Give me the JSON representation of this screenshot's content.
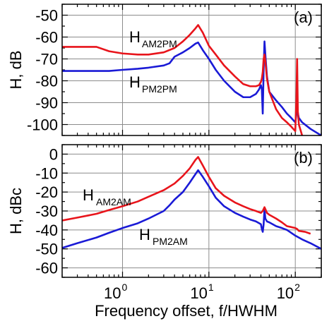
{
  "chart_data": [
    {
      "type": "line",
      "panel_label": "(a)",
      "ylabel": "H, dB",
      "xscale": "log",
      "xlim": [
        0.2,
        200
      ],
      "ylim": [
        -105,
        -45
      ],
      "yticks": [
        -50,
        -60,
        -70,
        -80,
        -90,
        -100
      ],
      "ytick_labels": [
        "-50",
        "-60",
        "-70",
        "-80",
        "-90",
        "-100"
      ],
      "grid": true,
      "series": [
        {
          "name": "HAM2PM",
          "label_main": "H",
          "label_sub": "AM2PM",
          "color": "#e8141b",
          "x": [
            0.2,
            0.3,
            0.5,
            0.7,
            1.0,
            1.5,
            2.0,
            3.0,
            4.0,
            5.0,
            6.0,
            7.0,
            7.5,
            8.5,
            10,
            12,
            15,
            20,
            25,
            30,
            35,
            38,
            40,
            41,
            42,
            43,
            44,
            45,
            47,
            50,
            60,
            70,
            80,
            90,
            100,
            103,
            105,
            107,
            110,
            120,
            130
          ],
          "y": [
            -64.5,
            -64.5,
            -64.5,
            -66.5,
            -67.5,
            -68,
            -68,
            -67,
            -65,
            -62,
            -59,
            -56,
            -54.5,
            -58,
            -64,
            -68,
            -73,
            -78,
            -81.5,
            -82.5,
            -82.5,
            -82,
            -80.5,
            -79,
            -76,
            -70,
            -68,
            -71,
            -79,
            -85,
            -93,
            -97,
            -99,
            -101,
            -103,
            -88,
            -70,
            -94,
            -100,
            -105,
            -106
          ]
        },
        {
          "name": "HPM2PM",
          "label_main": "H",
          "label_sub": "PM2PM",
          "color": "#1a1ad6",
          "x": [
            0.2,
            0.3,
            0.5,
            0.7,
            1.0,
            1.5,
            2.0,
            3.0,
            3.5,
            4.0,
            5.0,
            6.0,
            7.0,
            7.5,
            8.5,
            10,
            12,
            15,
            20,
            25,
            30,
            35,
            38,
            40,
            41,
            42,
            43,
            44,
            45,
            47,
            50,
            60,
            70,
            80,
            90,
            100,
            105,
            110,
            120,
            150,
            200
          ],
          "y": [
            -75.5,
            -75.5,
            -75.5,
            -75.5,
            -75,
            -74.5,
            -74,
            -73,
            -72,
            -69,
            -67,
            -65,
            -63,
            -62.5,
            -66,
            -70,
            -75,
            -80,
            -85,
            -87.5,
            -87.5,
            -86,
            -84,
            -82,
            -84,
            -95,
            -75,
            -62,
            -68,
            -78,
            -85,
            -89,
            -92,
            -95,
            -97,
            -99,
            -93,
            -97,
            -99,
            -102,
            -105
          ]
        }
      ]
    },
    {
      "type": "line",
      "panel_label": "(b)",
      "ylabel": "H, dBc",
      "xlabel": "Frequency offset, f/HWHM",
      "xscale": "log",
      "xlim": [
        0.2,
        200
      ],
      "ylim": [
        -65,
        5
      ],
      "xticks": [
        1,
        10,
        100
      ],
      "xtick_labels": [
        {
          "base": "10",
          "exp": "0"
        },
        {
          "base": "10",
          "exp": "1"
        },
        {
          "base": "10",
          "exp": "2"
        }
      ],
      "yticks": [
        0,
        -10,
        -20,
        -30,
        -40,
        -50,
        -60
      ],
      "ytick_labels": [
        "0",
        "-10",
        "-20",
        "-30",
        "-40",
        "-50",
        "-60"
      ],
      "grid": true,
      "series": [
        {
          "name": "HAM2AM",
          "label_main": "H",
          "label_sub": "AM2AM",
          "color": "#e8141b",
          "x": [
            0.2,
            0.3,
            0.5,
            0.7,
            1.0,
            1.5,
            2.0,
            3.0,
            4.0,
            5.0,
            6.0,
            7.0,
            7.5,
            8.5,
            10,
            12,
            15,
            20,
            25,
            30,
            35,
            40,
            42,
            43,
            44,
            45,
            47,
            50,
            60,
            70,
            80,
            90,
            100,
            105,
            110,
            130,
            150
          ],
          "y": [
            -35,
            -33.5,
            -31.5,
            -29.5,
            -27.5,
            -25,
            -22.5,
            -19,
            -15.5,
            -11.5,
            -7.5,
            -3,
            -1.5,
            -6,
            -12,
            -18,
            -22,
            -25.5,
            -27.5,
            -29,
            -30,
            -31,
            -30,
            -29,
            -28,
            -29,
            -31,
            -32,
            -34,
            -36,
            -38,
            -38.5,
            -39,
            -39.5,
            -40.5,
            -41,
            -42
          ]
        },
        {
          "name": "HPM2AM",
          "label_main": "H",
          "label_sub": "PM2AM",
          "color": "#1a1ad6",
          "x": [
            0.2,
            0.3,
            0.5,
            0.7,
            1.0,
            1.5,
            2.0,
            3.0,
            3.5,
            4.0,
            5.0,
            6.0,
            7.0,
            7.5,
            8.5,
            10,
            12,
            15,
            20,
            25,
            30,
            35,
            40,
            41,
            42,
            43,
            44,
            45,
            47,
            50,
            60,
            70,
            80,
            100,
            120,
            150,
            200
          ],
          "y": [
            -49.5,
            -47,
            -44,
            -41.5,
            -39,
            -36.5,
            -34,
            -30,
            -27,
            -24,
            -20,
            -15,
            -10.5,
            -8.5,
            -12,
            -17,
            -23,
            -27.5,
            -31,
            -33,
            -34.5,
            -35.5,
            -37,
            -39.5,
            -41,
            -37,
            -29,
            -34,
            -35.5,
            -36,
            -38,
            -39,
            -40,
            -43,
            -45,
            -47,
            -50
          ]
        }
      ]
    }
  ]
}
